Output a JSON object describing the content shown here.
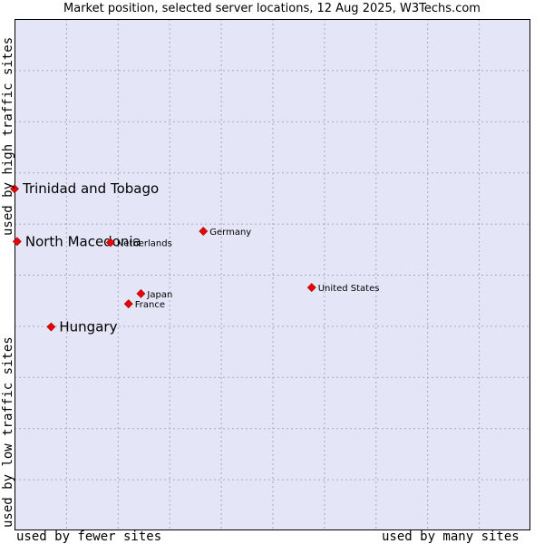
{
  "chart_data": {
    "type": "scatter",
    "title": "Market position, selected server locations, 12 Aug 2025, W3Techs.com",
    "xlabel_left": "used by fewer sites",
    "xlabel_right": "used by many sites",
    "ylabel_bottom": "used by low traffic sites",
    "ylabel_top": "used by high traffic sites",
    "xlim": [
      0,
      100
    ],
    "ylim": [
      0,
      100
    ],
    "grid": true,
    "colors": {
      "plot_bg": "#e4e6f8",
      "grid": "#a9a9bd",
      "marker": "#ee0000",
      "axis": "#000000"
    },
    "points": [
      {
        "name": "Trinidad and Tobago",
        "x": 0.0,
        "y": 66.8,
        "highlight": true
      },
      {
        "name": "North Macedonia",
        "x": 0.5,
        "y": 56.5,
        "highlight": true
      },
      {
        "name": "Hungary",
        "x": 7.1,
        "y": 39.8,
        "highlight": true
      },
      {
        "name": "Netherlands",
        "x": 18.6,
        "y": 56.3,
        "highlight": false
      },
      {
        "name": "Germany",
        "x": 36.6,
        "y": 58.5,
        "highlight": false
      },
      {
        "name": "Japan",
        "x": 24.5,
        "y": 46.3,
        "highlight": false
      },
      {
        "name": "France",
        "x": 22.1,
        "y": 44.3,
        "highlight": false
      },
      {
        "name": "United States",
        "x": 57.6,
        "y": 47.5,
        "highlight": false
      }
    ]
  }
}
